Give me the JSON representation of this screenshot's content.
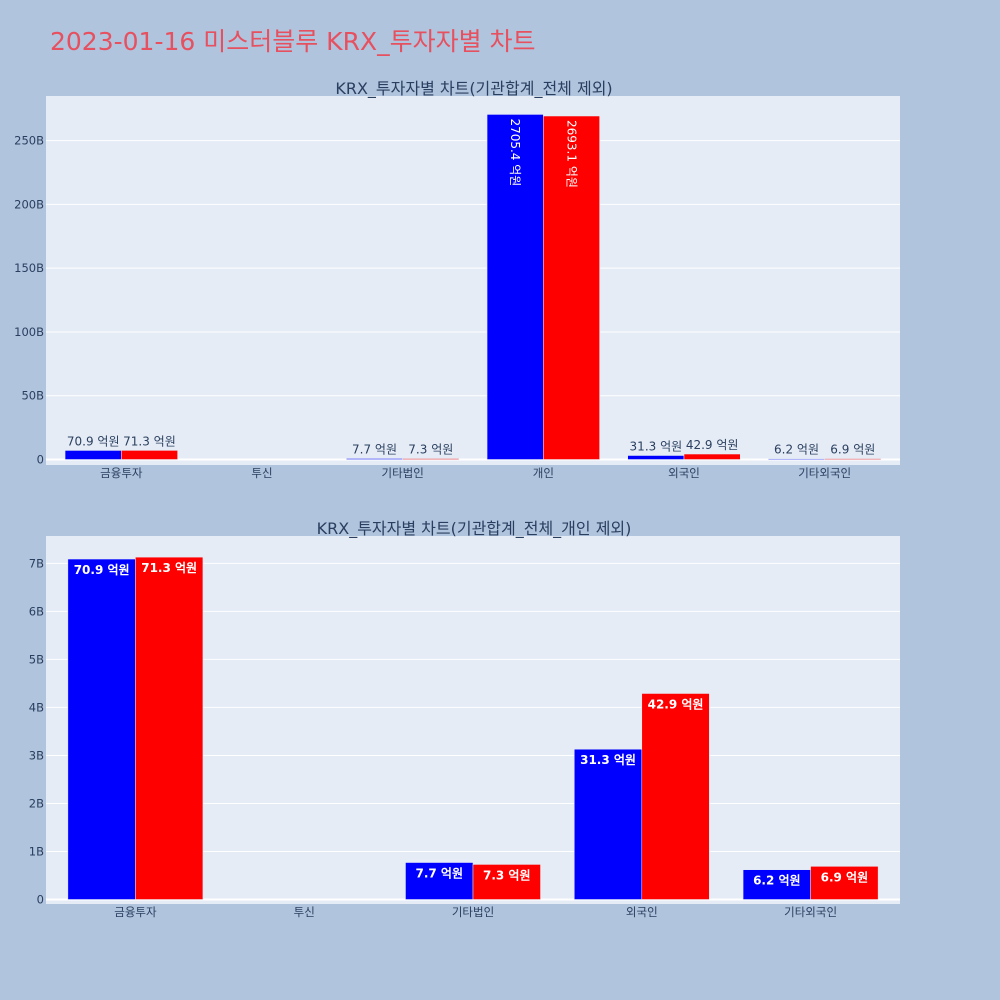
{
  "page": {
    "title": "2023-01-16 미스터블루 KRX_투자자별 차트"
  },
  "colors": {
    "background": "#b0c4de",
    "plot_bg": "#e5ecf6",
    "title": "#e6505f",
    "text": "#2a3f5f",
    "series_buy": "#0000ff",
    "series_sell": "#ff0000"
  },
  "chart_data": [
    {
      "type": "bar",
      "title": "KRX_투자자별 차트(기관합계_전체 제외)",
      "categories": [
        "금융투자",
        "투신",
        "기타법인",
        "개인",
        "외국인",
        "기타외국인"
      ],
      "series": [
        {
          "color": "#0000ff",
          "values": [
            7090000000,
            0,
            770000000,
            270540000000,
            3130000000,
            620000000
          ],
          "labels": [
            "70.9 억원",
            "",
            "7.7 억원",
            "2705.4 억원",
            "31.3 억원",
            "6.2 억원"
          ]
        },
        {
          "color": "#ff0000",
          "values": [
            7130000000,
            0,
            730000000,
            269310000000,
            4290000000,
            690000000
          ],
          "labels": [
            "71.3 억원",
            "",
            "7.3 억원",
            "2693.1 억원",
            "42.9 억원",
            "6.9 억원"
          ]
        }
      ],
      "ylim": [
        0,
        285000000000
      ],
      "yticks": [
        0,
        50000000000,
        100000000000,
        150000000000,
        200000000000,
        250000000000
      ],
      "ytick_labels": [
        "0",
        "50B",
        "100B",
        "150B",
        "200B",
        "250B"
      ],
      "grid": true,
      "legend": "none"
    },
    {
      "type": "bar",
      "title": "KRX_투자자별 차트(기관합계_전체_개인 제외)",
      "categories": [
        "금융투자",
        "투신",
        "기타법인",
        "외국인",
        "기타외국인"
      ],
      "series": [
        {
          "color": "#0000ff",
          "values": [
            7090000000,
            0,
            770000000,
            3130000000,
            620000000
          ],
          "labels": [
            "70.9 억원",
            "",
            "7.7 억원",
            "31.3 억원",
            "6.2 억원"
          ]
        },
        {
          "color": "#ff0000",
          "values": [
            7130000000,
            0,
            730000000,
            4290000000,
            690000000
          ],
          "labels": [
            "71.3 억원",
            "",
            "7.3 억원",
            "42.9 억원",
            "6.9 억원"
          ]
        }
      ],
      "ylim": [
        0,
        7570000000
      ],
      "yticks": [
        0,
        1000000000,
        2000000000,
        3000000000,
        4000000000,
        5000000000,
        6000000000,
        7000000000
      ],
      "ytick_labels": [
        "0",
        "1B",
        "2B",
        "3B",
        "4B",
        "5B",
        "6B",
        "7B"
      ],
      "grid": true,
      "legend": "none"
    }
  ]
}
